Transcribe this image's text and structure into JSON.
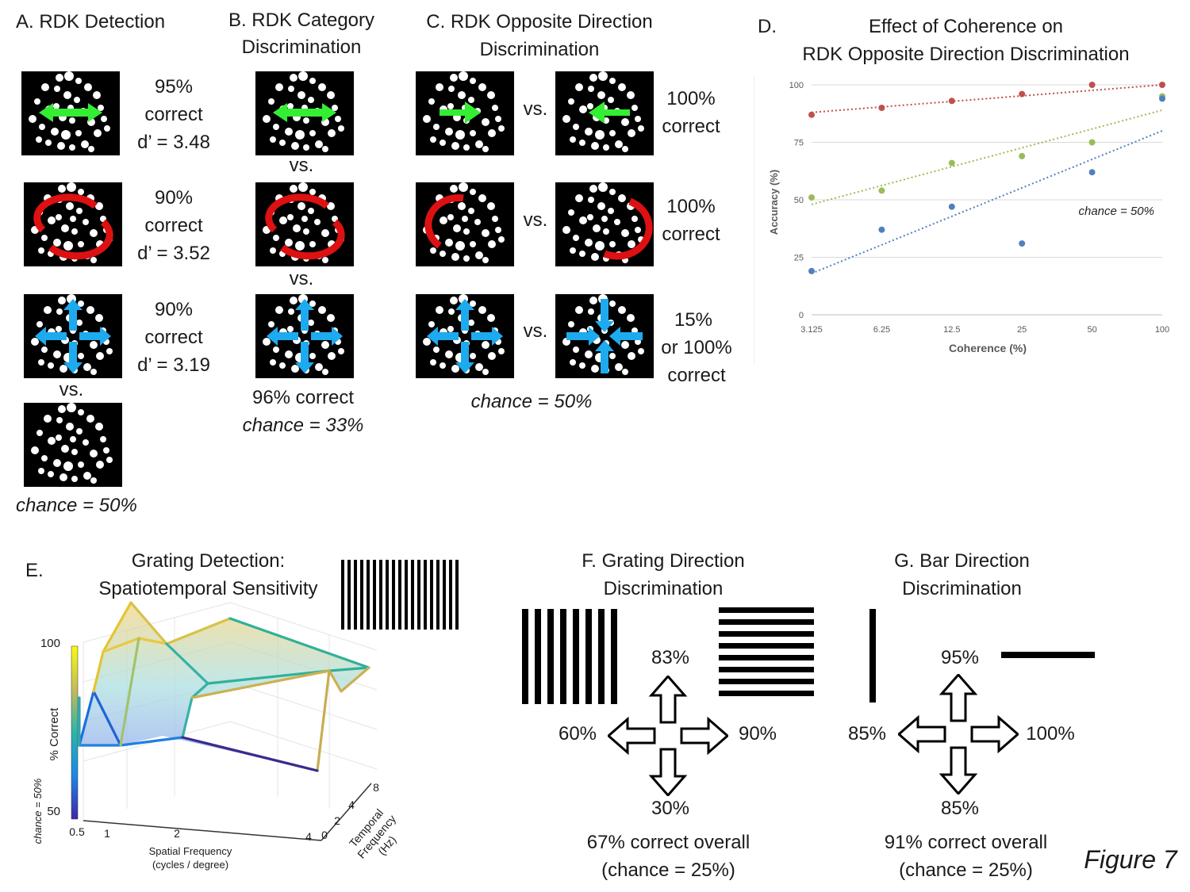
{
  "panelA": {
    "title": "A. RDK Detection",
    "r1": {
      "pct": "95%",
      "word": "correct",
      "d": "d’ = 3.48"
    },
    "r2": {
      "pct": "90%",
      "word": "correct",
      "d": "d’ = 3.52"
    },
    "r3": {
      "pct": "90%",
      "word": "correct",
      "d": "d’ = 3.19"
    },
    "vs": "vs.",
    "chance": "chance = 50%"
  },
  "panelB": {
    "title1": "B.  RDK Category",
    "title2": "Discrimination",
    "vs": "vs.",
    "result": "96% correct",
    "chance": "chance = 33%"
  },
  "panelC": {
    "title1": "C. RDK Opposite Direction",
    "title2": "Discrimination",
    "vs": "vs.",
    "r1a": "100%",
    "r1b": "correct",
    "r2a": "100%",
    "r2b": "correct",
    "r3a": "15%",
    "r3b": "or 100%",
    "r3c": "correct",
    "chance": "chance = 50%"
  },
  "panelD": {
    "label": "D.",
    "title1": "Effect of Coherence on",
    "title2": "RDK Opposite Direction Discrimination",
    "chance_label": "chance = 50%"
  },
  "chart_data": {
    "type": "scatter",
    "xlabel": "Coherence (%)",
    "ylabel": "Accuracy (%)",
    "x": [
      3.125,
      6.25,
      12.5,
      25,
      50,
      100
    ],
    "x_tick_labels": [
      "3.125",
      "6.25",
      "12.5",
      "25",
      "50",
      "100"
    ],
    "x_scale": "log",
    "ylim": [
      0,
      100
    ],
    "y_ticks": [
      0,
      25,
      50,
      75,
      100
    ],
    "grid": "horizontal",
    "series": [
      {
        "color": "#c0504d",
        "values": [
          87,
          90,
          93,
          96,
          100,
          100
        ],
        "trend": [
          88,
          100
        ]
      },
      {
        "color": "#9bbb59",
        "values": [
          51,
          54,
          66,
          69,
          75,
          95
        ],
        "trend": [
          48,
          89
        ]
      },
      {
        "color": "#4f81bd",
        "values": [
          19,
          37,
          47,
          31,
          62,
          94
        ],
        "trend": [
          18,
          80
        ]
      }
    ]
  },
  "panelE": {
    "label": "E.",
    "title1": "Grating Detection:",
    "title2": "Spatiotemporal Sensitivity",
    "colorbar_max": "100",
    "colorbar_min": "50",
    "colorbar_label": "% Correct",
    "chance": "chance = 50%",
    "sf_ticks": [
      "0.5",
      "1",
      "2",
      "4"
    ],
    "sf_label1": "Spatial Frequency",
    "sf_label2": "(cycles / degree)",
    "tf_ticks": [
      "0",
      "2",
      "4",
      "8"
    ],
    "tf_label1": "Temporal",
    "tf_label2": "Frequency",
    "tf_label3": "(Hz)"
  },
  "panelF": {
    "title1": "F. Grating Direction",
    "title2": "Discrimination",
    "up": "83%",
    "left": "60%",
    "right": "90%",
    "down": "30%",
    "overall": "67% correct overall",
    "chance": "(chance = 25%)"
  },
  "panelG": {
    "title1": "G. Bar Direction",
    "title2": "Discrimination",
    "up": "95%",
    "left": "85%",
    "right": "100%",
    "down": "85%",
    "overall": "91% correct overall",
    "chance": "(chance = 25%)"
  },
  "figure_label": "Figure 7",
  "colors": {
    "green": "#33ee33",
    "red": "#dd1111",
    "blue": "#1eaaee"
  }
}
